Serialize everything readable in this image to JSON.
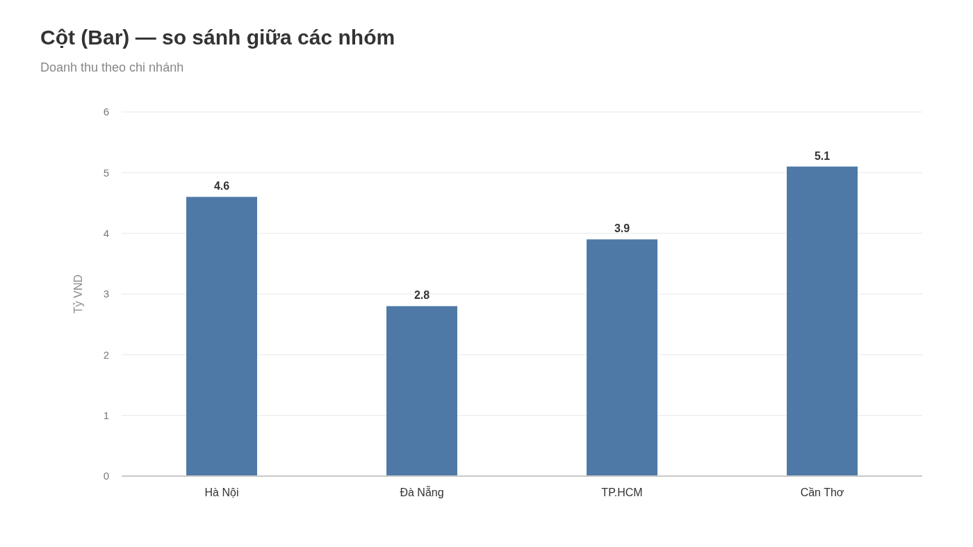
{
  "chart_data": {
    "type": "bar",
    "title": "Cột (Bar) — so sánh giữa các nhóm",
    "subtitle": "Doanh thu theo chi nhánh",
    "ylabel": "Tỷ VND",
    "categories": [
      "Hà Nội",
      "Đà Nẵng",
      "TP.HCM",
      "Cần Thơ"
    ],
    "values": [
      4.6,
      2.8,
      3.9,
      5.1
    ],
    "color": "#4e79a7",
    "ylim": [
      0,
      6
    ],
    "yticks": [
      0,
      1,
      2,
      3,
      4,
      5,
      6
    ],
    "grid": "y",
    "data_labels": true
  }
}
